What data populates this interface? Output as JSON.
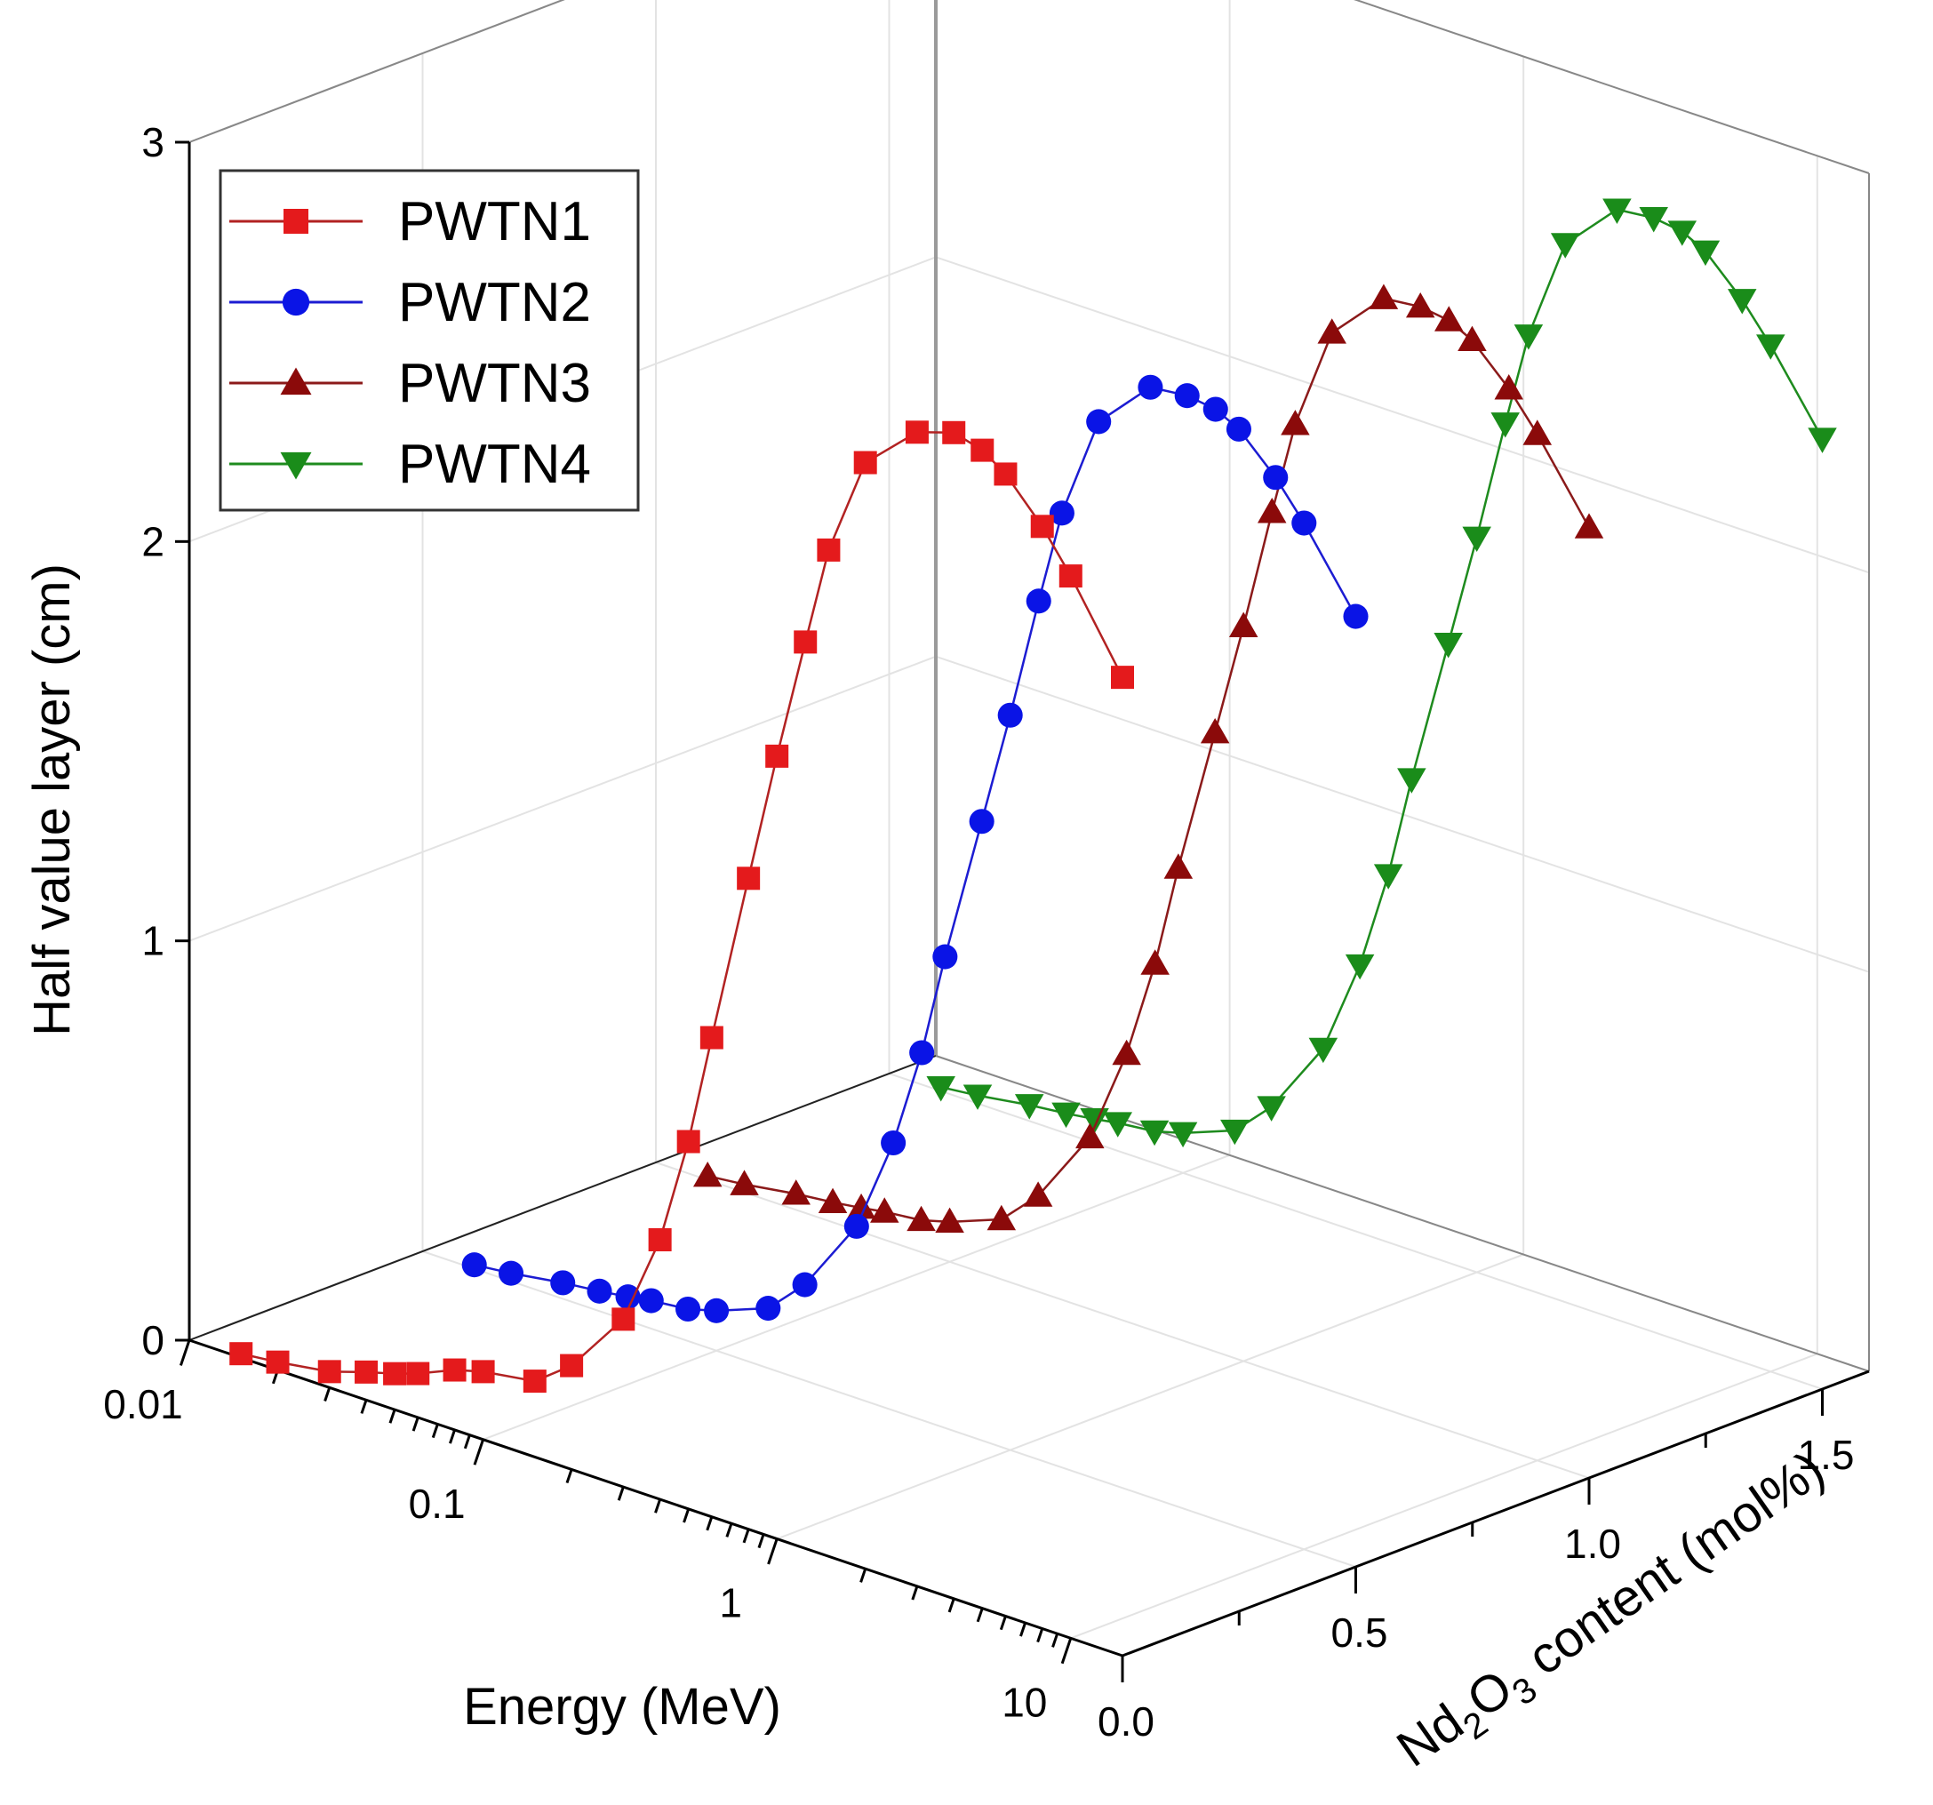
{
  "chart_data": {
    "type": "line",
    "projection": "3d",
    "title": "",
    "xlabel": "Energy (MeV)",
    "xscale": "log",
    "xlim": [
      0.01,
      15
    ],
    "x_ticks": [
      0.01,
      0.1,
      1,
      10
    ],
    "x_tick_labels": [
      "0.01",
      "0.1",
      "1",
      "10"
    ],
    "ylabel": "Half value layer (cm)",
    "ylim": [
      0,
      3
    ],
    "y_ticks": [
      0,
      1,
      2,
      3
    ],
    "y_tick_labels": [
      "0",
      "1",
      "2",
      "3"
    ],
    "zlabel": "Nd₂O₃ content (mol%)",
    "zlabel_parts": {
      "main1": "Nd",
      "sub1": "2",
      "main2": "O",
      "sub2": "3",
      "rest": " content (mol%)"
    },
    "zlim": [
      0,
      1.6
    ],
    "z_ticks": [
      0,
      0.5,
      1.0,
      1.5
    ],
    "z_tick_labels": [
      "0.0",
      "0.5",
      "1.0",
      "1.5"
    ],
    "grid": true,
    "legend_position": "top-left",
    "energies": [
      0.015,
      0.02,
      0.03,
      0.04,
      0.05,
      0.06,
      0.08,
      0.1,
      0.15,
      0.2,
      0.3,
      0.4,
      0.5,
      0.6,
      0.8,
      1,
      1.25,
      1.5,
      2,
      3,
      4,
      5,
      6,
      8,
      10,
      15
    ],
    "series": [
      {
        "name": "PWTN1",
        "nd2o3": 0.0,
        "color": "#e41a1c",
        "line_color": "#b22222",
        "marker": "square",
        "values": [
          0.01,
          0.02,
          0.04,
          0.07,
          0.09,
          0.11,
          0.15,
          0.17,
          0.19,
          0.26,
          0.42,
          0.65,
          0.92,
          1.2,
          1.63,
          1.96,
          2.27,
          2.52,
          2.77,
          2.89,
          2.92,
          2.9,
          2.86,
          2.76,
          2.66,
          2.45
        ]
      },
      {
        "name": "PWTN2",
        "nd2o3": 0.5,
        "color": "#0a14e6",
        "line_color": "#1c1cd2",
        "marker": "circle",
        "values": [
          0.01,
          0.02,
          0.04,
          0.05,
          0.06,
          0.07,
          0.08,
          0.1,
          0.15,
          0.24,
          0.43,
          0.67,
          0.92,
          1.18,
          1.55,
          1.84,
          2.15,
          2.39,
          2.65,
          2.78,
          2.79,
          2.78,
          2.75,
          2.66,
          2.57,
          2.38
        ]
      },
      {
        "name": "PWTN3",
        "nd2o3": 1.0,
        "color": "#8b0a0a",
        "line_color": "#8b1a1a",
        "marker": "triangle-up",
        "values": [
          0.01,
          0.02,
          0.04,
          0.05,
          0.06,
          0.07,
          0.08,
          0.1,
          0.15,
          0.24,
          0.43,
          0.67,
          0.92,
          1.18,
          1.55,
          1.84,
          2.15,
          2.39,
          2.65,
          2.78,
          2.79,
          2.78,
          2.75,
          2.66,
          2.57,
          2.38
        ]
      },
      {
        "name": "PWTN4",
        "nd2o3": 1.5,
        "color": "#1a8c1a",
        "line_color": "#1e8b1e",
        "marker": "triangle-down",
        "values": [
          0.01,
          0.02,
          0.04,
          0.05,
          0.06,
          0.07,
          0.08,
          0.1,
          0.15,
          0.24,
          0.43,
          0.67,
          0.92,
          1.18,
          1.55,
          1.84,
          2.15,
          2.39,
          2.65,
          2.78,
          2.79,
          2.78,
          2.75,
          2.66,
          2.57,
          2.38
        ]
      }
    ]
  }
}
